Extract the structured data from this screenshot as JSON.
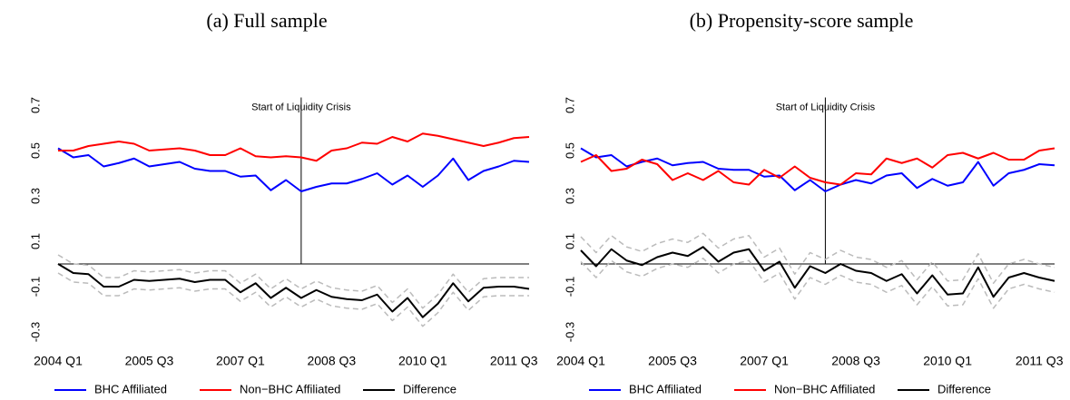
{
  "chart_data": [
    {
      "type": "line",
      "title": "(a) Full sample",
      "categories": [
        "2004 Q1",
        null,
        null,
        null,
        null,
        null,
        "2005 Q3",
        null,
        null,
        null,
        null,
        null,
        "2007 Q1",
        null,
        null,
        null,
        null,
        null,
        "2008 Q3",
        null,
        null,
        null,
        null,
        null,
        "2010 Q1",
        null,
        null,
        null,
        null,
        null,
        "2011 Q3",
        null
      ],
      "ylim": [
        -0.35,
        0.75
      ],
      "yticks": [
        -0.3,
        -0.1,
        0.1,
        0.3,
        0.5,
        0.7
      ],
      "hline": 0,
      "annotation": {
        "text": "Start of Liquidity Crisis",
        "x": 16
      },
      "series": [
        {
          "name": "BHC Affiliated",
          "color": "#0000ff",
          "values": [
            0.51,
            0.47,
            0.48,
            0.43,
            0.445,
            0.465,
            0.43,
            0.44,
            0.45,
            0.42,
            0.41,
            0.41,
            0.385,
            0.39,
            0.325,
            0.37,
            0.32,
            0.34,
            0.355,
            0.355,
            0.375,
            0.4,
            0.35,
            0.39,
            0.34,
            0.39,
            0.465,
            0.37,
            0.41,
            0.43,
            0.455,
            0.45
          ]
        },
        {
          "name": "Non−BHC Affiliated",
          "color": "#ff0000",
          "values": [
            0.5,
            0.5,
            0.52,
            0.53,
            0.54,
            0.53,
            0.5,
            0.505,
            0.51,
            0.5,
            0.48,
            0.48,
            0.51,
            0.475,
            0.47,
            0.475,
            0.47,
            0.455,
            0.5,
            0.51,
            0.535,
            0.53,
            0.56,
            0.54,
            0.575,
            0.565,
            0.55,
            0.535,
            0.52,
            0.535,
            0.555,
            0.56
          ]
        },
        {
          "name": "Difference",
          "color": "#000000",
          "values": [
            0,
            -0.04,
            -0.045,
            -0.1,
            -0.1,
            -0.07,
            -0.075,
            -0.07,
            -0.065,
            -0.08,
            -0.07,
            -0.07,
            -0.125,
            -0.085,
            -0.15,
            -0.105,
            -0.15,
            -0.115,
            -0.145,
            -0.155,
            -0.16,
            -0.135,
            -0.21,
            -0.15,
            -0.235,
            -0.175,
            -0.085,
            -0.165,
            -0.105,
            -0.1,
            -0.1,
            -0.11
          ]
        },
        {
          "color": "#bbbbbb",
          "dash": true,
          "values": [
            0.04,
            0,
            -0.005,
            -0.06,
            -0.06,
            -0.03,
            -0.035,
            -0.03,
            -0.025,
            -0.04,
            -0.03,
            -0.03,
            -0.085,
            -0.045,
            -0.11,
            -0.065,
            -0.11,
            -0.075,
            -0.105,
            -0.115,
            -0.12,
            -0.095,
            -0.17,
            -0.11,
            -0.195,
            -0.135,
            -0.045,
            -0.125,
            -0.065,
            -0.06,
            -0.06,
            -0.06
          ]
        },
        {
          "color": "#bbbbbb",
          "dash": true,
          "values": [
            -0.04,
            -0.08,
            -0.085,
            -0.14,
            -0.14,
            -0.11,
            -0.115,
            -0.11,
            -0.105,
            -0.12,
            -0.11,
            -0.11,
            -0.165,
            -0.125,
            -0.19,
            -0.145,
            -0.19,
            -0.155,
            -0.185,
            -0.195,
            -0.2,
            -0.175,
            -0.25,
            -0.19,
            -0.275,
            -0.215,
            -0.125,
            -0.205,
            -0.145,
            -0.14,
            -0.14,
            -0.14
          ]
        }
      ]
    },
    {
      "type": "line",
      "title": "(b) Propensity-score sample",
      "categories": [
        "2004 Q1",
        null,
        null,
        null,
        null,
        null,
        "2005 Q3",
        null,
        null,
        null,
        null,
        null,
        "2007 Q1",
        null,
        null,
        null,
        null,
        null,
        "2008 Q3",
        null,
        null,
        null,
        null,
        null,
        "2010 Q1",
        null,
        null,
        null,
        null,
        null,
        "2011 Q3",
        null
      ],
      "ylim": [
        -0.35,
        0.75
      ],
      "yticks": [
        -0.3,
        -0.1,
        0.1,
        0.3,
        0.5,
        0.7
      ],
      "hline": 0,
      "annotation": {
        "text": "Start of Liquidity Crisis",
        "x": 16
      },
      "series": [
        {
          "name": "BHC Affiliated",
          "color": "#0000ff",
          "values": [
            0.51,
            0.47,
            0.48,
            0.43,
            0.45,
            0.465,
            0.435,
            0.445,
            0.45,
            0.42,
            0.415,
            0.415,
            0.385,
            0.39,
            0.325,
            0.37,
            0.32,
            0.35,
            0.37,
            0.355,
            0.39,
            0.4,
            0.335,
            0.375,
            0.345,
            0.36,
            0.45,
            0.345,
            0.4,
            0.415,
            0.44,
            0.435
          ]
        },
        {
          "name": "Non−BHC Affiliated",
          "color": "#ff0000",
          "values": [
            0.45,
            0.48,
            0.41,
            0.42,
            0.46,
            0.44,
            0.37,
            0.4,
            0.37,
            0.41,
            0.36,
            0.35,
            0.415,
            0.38,
            0.43,
            0.38,
            0.36,
            0.35,
            0.4,
            0.395,
            0.465,
            0.445,
            0.465,
            0.425,
            0.48,
            0.49,
            0.465,
            0.49,
            0.46,
            0.46,
            0.5,
            0.51
          ]
        },
        {
          "name": "Difference",
          "color": "#000000",
          "values": [
            0.06,
            -0.01,
            0.065,
            0.015,
            -0.005,
            0.03,
            0.05,
            0.035,
            0.075,
            0.01,
            0.05,
            0.065,
            -0.03,
            0.01,
            -0.105,
            -0.01,
            -0.04,
            0,
            -0.03,
            -0.04,
            -0.075,
            -0.045,
            -0.13,
            -0.05,
            -0.135,
            -0.13,
            -0.015,
            -0.145,
            -0.06,
            -0.04,
            -0.06,
            -0.075
          ]
        },
        {
          "color": "#bbbbbb",
          "dash": true,
          "values": [
            0.12,
            0.05,
            0.125,
            0.075,
            0.055,
            0.09,
            0.11,
            0.095,
            0.135,
            0.07,
            0.11,
            0.125,
            0.03,
            0.07,
            -0.045,
            0.05,
            0.02,
            0.06,
            0.03,
            0.02,
            -0.015,
            0.015,
            -0.07,
            0.01,
            -0.075,
            -0.07,
            0.045,
            -0.085,
            0,
            0.02,
            0,
            -0.015
          ]
        },
        {
          "color": "#bbbbbb",
          "dash": true,
          "values": [
            0.01,
            -0.06,
            0.015,
            -0.035,
            -0.055,
            -0.02,
            0,
            -0.015,
            0.025,
            -0.04,
            0,
            0.015,
            -0.08,
            -0.04,
            -0.155,
            -0.06,
            -0.09,
            -0.05,
            -0.08,
            -0.09,
            -0.125,
            -0.095,
            -0.18,
            -0.1,
            -0.185,
            -0.18,
            -0.065,
            -0.195,
            -0.11,
            -0.09,
            -0.11,
            -0.125
          ]
        }
      ]
    }
  ]
}
